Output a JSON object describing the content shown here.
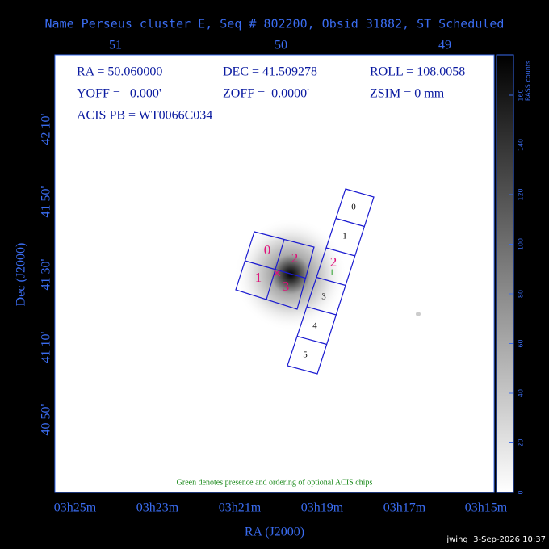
{
  "title": "Name Perseus cluster E, Seq # 802200, Obsid 31882, ST Scheduled",
  "info": {
    "ra": "RA = 50.060000",
    "dec": "DEC = 41.509278",
    "roll": "ROLL = 108.0058",
    "yoff": "YOFF =   0.000'",
    "zoff": "ZOFF =  0.0000'",
    "zsim": "ZSIM = 0 mm",
    "acis_pb": "ACIS PB = WT0066C034"
  },
  "axes": {
    "top_ticks": [
      "51",
      "50",
      "49"
    ],
    "bottom_ticks": [
      "03h25m",
      "03h23m",
      "03h21m",
      "03h19m",
      "03h17m",
      "03h15m"
    ],
    "left_ticks": [
      "42 10'",
      "41 50'",
      "41 30'",
      "41 10'",
      "40 50'"
    ],
    "x_label": "RA (J2000)",
    "y_label": "Dec (J2000)"
  },
  "colorbar": {
    "label": "RASS counts",
    "ticks": [
      "0",
      "20",
      "40",
      "60",
      "80",
      "100",
      "120",
      "140",
      "160"
    ]
  },
  "acis_i_labels": [
    "0",
    "2",
    "1",
    "3"
  ],
  "acis_s_labels": [
    "0",
    "1",
    "3",
    "4",
    "5"
  ],
  "selected_chip_label": "2",
  "optional_chip_label": "1",
  "note": "Green denotes presence and ordering of optional ACIS chips",
  "footer": "jwing  3-Sep-2026 10:37"
}
